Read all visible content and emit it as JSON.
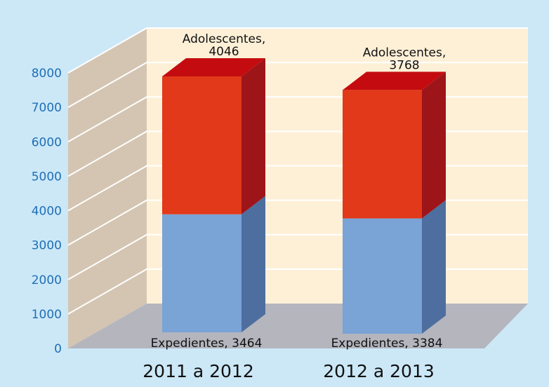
{
  "colors": {
    "background": "#cce8f7",
    "back_wall": "#fdf0d7",
    "side_wall": "#d4c5b2",
    "floor": "#b4b5bd",
    "grid": "#ffffff",
    "tick_text": "#1f6fb5",
    "expedientes_front": "#7aa3d6",
    "expedientes_side": "#4d6e9f",
    "adolescentes_front": "#e2391a",
    "adolescentes_side": "#9e1519",
    "adolescentes_top": "#c40c10"
  },
  "chart_data": {
    "type": "bar",
    "stacked": true,
    "three_d": true,
    "categories": [
      "2011 a 2012",
      "2012 a 2013"
    ],
    "series": [
      {
        "name": "Expedientes",
        "values": [
          3464,
          3384
        ]
      },
      {
        "name": "Adolescentes",
        "values": [
          4046,
          3768
        ]
      }
    ],
    "data_labels": [
      [
        "Expedientes, 3464",
        "Expedientes, 3384"
      ],
      [
        [
          "Adolescentes,",
          "4046"
        ],
        [
          "Adolescentes,",
          "3768"
        ]
      ]
    ],
    "title": "",
    "xlabel": "",
    "ylabel": "",
    "ylim": [
      0,
      8000
    ],
    "yticks": [
      "0",
      "1000",
      "2000",
      "3000",
      "4000",
      "5000",
      "6000",
      "7000",
      "8000"
    ],
    "grid": true,
    "legend": "none"
  }
}
